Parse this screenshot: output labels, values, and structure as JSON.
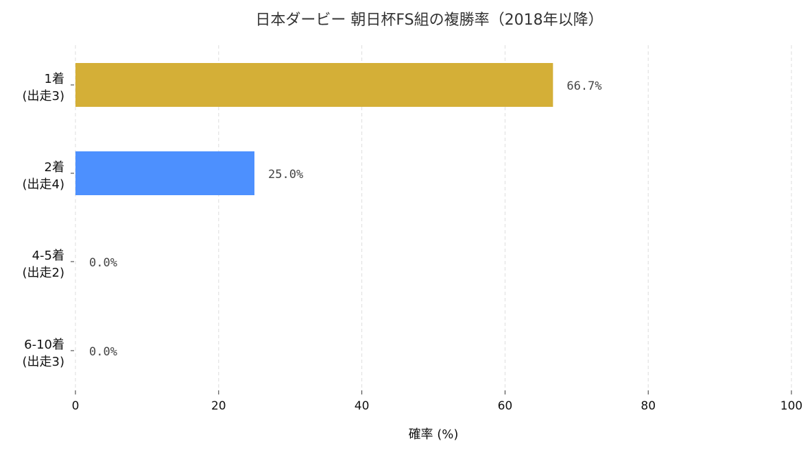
{
  "chart_data": {
    "type": "bar",
    "orientation": "horizontal",
    "title": "日本ダービー 朝日杯FS組の複勝率（2018年以降）",
    "xlabel": "確率 (%)",
    "ylabel": "",
    "xlim": [
      0,
      100
    ],
    "xticks": [
      0,
      20,
      40,
      60,
      80,
      100
    ],
    "grid": "vertical-dashed",
    "categories": [
      {
        "line1": "1着",
        "line2": "(出走3)"
      },
      {
        "line1": "2着",
        "line2": "(出走4)"
      },
      {
        "line1": "4-5着",
        "line2": "(出走2)"
      },
      {
        "line1": "6-10着",
        "line2": "(出走3)"
      }
    ],
    "values": [
      66.7,
      25.0,
      0.0,
      0.0
    ],
    "value_labels": [
      "66.7%",
      "25.0%",
      "0.0%",
      "0.0%"
    ],
    "colors": [
      "#D4AF37",
      "#4D90FE",
      "#4D90FE",
      "#4D90FE"
    ]
  }
}
